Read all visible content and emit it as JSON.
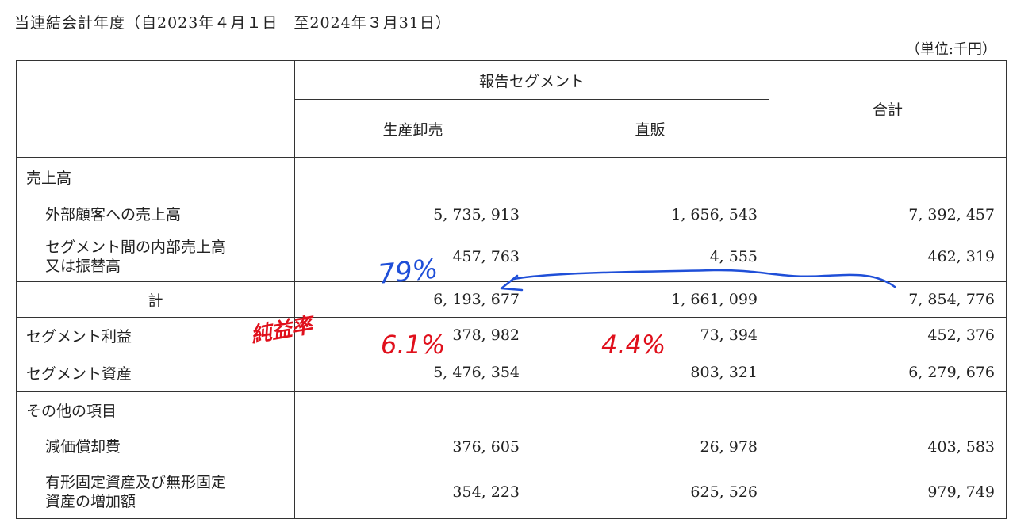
{
  "period_heading": "当連結会計年度（自2023年４月１日　至2024年３月31日）",
  "unit_label": "（単位:千円）",
  "table": {
    "group_header": "報告セグメント",
    "segments": [
      "生産卸売",
      "直販"
    ],
    "total_header": "合計",
    "rows": {
      "sales_heading": "売上高",
      "external_sales": {
        "label": "外部顧客への売上高",
        "values": [
          "5, 735, 913",
          "1, 656, 543",
          "7, 392, 457"
        ]
      },
      "intersegment": {
        "label_line1": "セグメント間の内部売上高",
        "label_line2": "又は振替高",
        "values": [
          "457, 763",
          "4, 555",
          "462, 319"
        ]
      },
      "total": {
        "label": "計",
        "values": [
          "6, 193, 677",
          "1, 661, 099",
          "7, 854, 776"
        ]
      },
      "profit": {
        "label": "セグメント利益",
        "values": [
          "378, 982",
          "73, 394",
          "452, 376"
        ]
      },
      "assets": {
        "label": "セグメント資産",
        "values": [
          "5, 476, 354",
          "803, 321",
          "6, 279, 676"
        ]
      },
      "other_heading": "その他の項目",
      "depreciation": {
        "label": "減価償却費",
        "values": [
          "376, 605",
          "26, 978",
          "403, 583"
        ]
      },
      "capex": {
        "label_line1": "有形固定資産及び無形固定",
        "label_line2": "資産の増加額",
        "values": [
          "354, 223",
          "625, 526",
          "979, 749"
        ]
      }
    }
  },
  "annotations": {
    "blue_percent": "79%",
    "red_ratio_label": "純益率",
    "red_percent_1": "6.1%",
    "red_percent_2": "4.4%",
    "blue_color": "#1f4fd8",
    "red_color": "#e0101c"
  }
}
